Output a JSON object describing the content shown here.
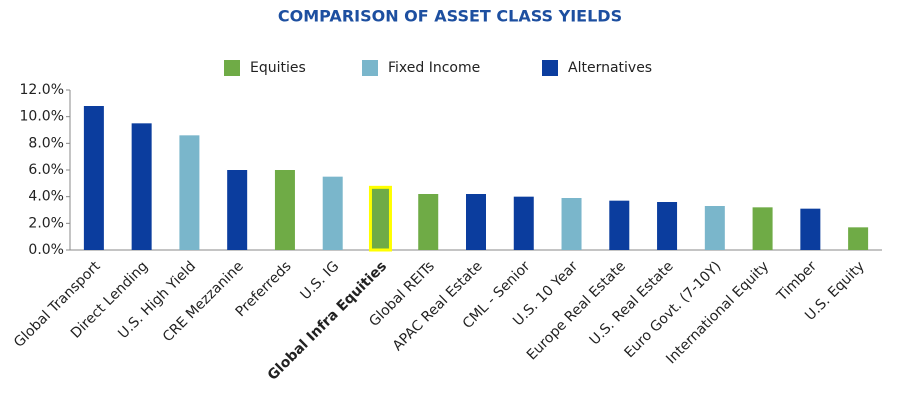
{
  "chart_data": {
    "type": "bar",
    "title": "COMPARISON OF ASSET CLASS YIELDS",
    "categories": [
      "Global Transport",
      "Direct Lending",
      "U.S. High Yield",
      "CRE Mezzanine",
      "Preferreds",
      "U.S. IG",
      "Global Infra Equities",
      "Global REITs",
      "APAC Real Estate",
      "CML - Senior",
      "U.S. 10 Year",
      "Europe Real Estate",
      "U.S. Real Estate",
      "Euro Govt. (7-10Y)",
      "International Equity",
      "Timber",
      "U.S. Equity"
    ],
    "values": [
      10.8,
      9.5,
      8.6,
      6.0,
      6.0,
      5.5,
      4.7,
      4.2,
      4.2,
      4.0,
      3.9,
      3.7,
      3.6,
      3.3,
      3.2,
      3.1,
      1.7
    ],
    "colors": [
      "#0b3d9e",
      "#0b3d9e",
      "#7ab6cb",
      "#0b3d9e",
      "#6fab46",
      "#7ab6cb",
      "#6fab46",
      "#6fab46",
      "#0b3d9e",
      "#0b3d9e",
      "#7ab6cb",
      "#0b3d9e",
      "#0b3d9e",
      "#7ab6cb",
      "#6fab46",
      "#0b3d9e",
      "#6fab46"
    ],
    "legend": [
      {
        "name": "Equities",
        "color": "#6fab46"
      },
      {
        "name": "Fixed Income",
        "color": "#7ab6cb"
      },
      {
        "name": "Alternatives",
        "color": "#0b3d9e"
      }
    ],
    "highlight_index": 6,
    "highlight_color": "#ffff00",
    "ylim": [
      0,
      12
    ],
    "yticks": [
      {
        "value": 0,
        "label": "0.0%"
      },
      {
        "value": 2,
        "label": "2.0%"
      },
      {
        "value": 4,
        "label": "4.0%"
      },
      {
        "value": 6,
        "label": "6.0%"
      },
      {
        "value": 8,
        "label": "8.0%"
      },
      {
        "value": 10,
        "label": "10.0%"
      },
      {
        "value": 12,
        "label": "12.0%"
      }
    ],
    "grid": false
  }
}
